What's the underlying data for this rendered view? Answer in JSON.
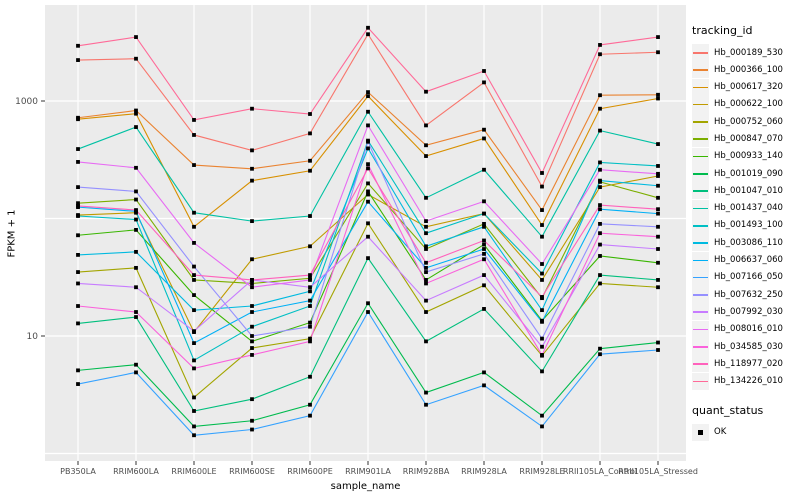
{
  "chart_data": {
    "type": "line",
    "xlabel": "sample_name",
    "ylabel": "FPKM + 1",
    "y_scale": "log10",
    "y_tick_labels": [
      "1000",
      "10"
    ],
    "y_tick_values": [
      1000,
      10
    ],
    "y_gridline_values": [
      1,
      10,
      100,
      1000
    ],
    "ylim": [
      0.9,
      6500
    ],
    "grid": "on",
    "panel_bg": "#EBEBEB",
    "grid_color": "#FFFFFF",
    "point_color": "#000000",
    "tick_text_color": "#4D4D4D",
    "legend_position": "right",
    "categories": [
      "PB350LA",
      "RRIM600LA",
      "RRIM600LE",
      "RRIM600SE",
      "RRIM600PE",
      "RRIM901LA",
      "RRIM928BA",
      "RRIM928LA",
      "RRIM928LE",
      "RRII105LA_Control",
      "RRII105LA_Stressed"
    ],
    "series": [
      {
        "name": "Hb_000189_530",
        "color": "#F8766D",
        "values": [
          2230,
          2290,
          514,
          380,
          530,
          3700,
          620,
          1440,
          187,
          2500,
          2600
        ]
      },
      {
        "name": "Hb_000366_100",
        "color": "#EA8331",
        "values": [
          720,
          830,
          285,
          265,
          310,
          1190,
          420,
          570,
          118,
          1120,
          1130
        ]
      },
      {
        "name": "Hb_000617_320",
        "color": "#D89000",
        "values": [
          700,
          780,
          85,
          210,
          255,
          1100,
          340,
          480,
          88,
          860,
          1050
        ]
      },
      {
        "name": "Hb_000622_100",
        "color": "#C09B00",
        "values": [
          107,
          112,
          10.8,
          45,
          58,
          160,
          85,
          110,
          30,
          185,
          230
        ]
      },
      {
        "name": "Hb_000752_060",
        "color": "#A3A500",
        "values": [
          35,
          38,
          3.0,
          7.9,
          9.5,
          91,
          16,
          27,
          6.8,
          28,
          26
        ]
      },
      {
        "name": "Hb_000847_070",
        "color": "#7CAE00",
        "values": [
          135,
          145,
          30,
          28,
          31,
          199,
          55,
          90,
          21,
          205,
          150
        ]
      },
      {
        "name": "Hb_000933_140",
        "color": "#39B600",
        "values": [
          72,
          80,
          22.3,
          9,
          13,
          170,
          30,
          60,
          13.5,
          48,
          42
        ]
      },
      {
        "name": "Hb_001019_090",
        "color": "#00BB4E",
        "values": [
          5.1,
          5.7,
          1.7,
          1.9,
          2.6,
          19,
          3.3,
          4.9,
          2.1,
          7.8,
          8.8
        ]
      },
      {
        "name": "Hb_001047_010",
        "color": "#00BF7D",
        "values": [
          12.8,
          14.5,
          2.3,
          2.9,
          4.5,
          46,
          9,
          17,
          5.0,
          33,
          30
        ]
      },
      {
        "name": "Hb_001437_040",
        "color": "#00C1A3",
        "values": [
          390,
          600,
          112,
          95,
          105,
          810,
          150,
          260,
          70,
          560,
          430
        ]
      },
      {
        "name": "Hb_001493_100",
        "color": "#00BFC4",
        "values": [
          105,
          98,
          6.2,
          12,
          18,
          460,
          75,
          110,
          34,
          300,
          280
        ]
      },
      {
        "name": "Hb_003086_110",
        "color": "#00BAE0",
        "values": [
          49,
          52,
          16.6,
          18,
          24,
          395,
          58,
          85,
          16.6,
          210,
          190
        ]
      },
      {
        "name": "Hb_006637_060",
        "color": "#00B0F6",
        "values": [
          125,
          115,
          8.7,
          16,
          20,
          139,
          38,
          55,
          13.2,
          120,
          110
        ]
      },
      {
        "name": "Hb_007166_050",
        "color": "#35A2FF",
        "values": [
          3.9,
          4.9,
          1.43,
          1.6,
          2.1,
          16,
          2.6,
          3.8,
          1.7,
          7.0,
          7.6
        ]
      },
      {
        "name": "Hb_007632_250",
        "color": "#9590FF",
        "values": [
          185,
          170,
          39,
          10,
          12,
          450,
          35,
          50,
          9.5,
          90,
          85
        ]
      },
      {
        "name": "Hb_007992_030",
        "color": "#C77CFF",
        "values": [
          28,
          26,
          11,
          30,
          26,
          70,
          20,
          33,
          8.1,
          60,
          55
        ]
      },
      {
        "name": "Hb_008016_010",
        "color": "#E76BF3",
        "values": [
          303,
          270,
          62,
          26,
          30,
          620,
          95,
          140,
          41,
          260,
          240
        ]
      },
      {
        "name": "Hb_034585_030",
        "color": "#FA62DB",
        "values": [
          18,
          16,
          5.3,
          6.9,
          9,
          290,
          28,
          45,
          6.9,
          75,
          70
        ]
      },
      {
        "name": "Hb_118977_020",
        "color": "#FF62BC",
        "values": [
          128,
          118,
          33,
          30,
          33,
          267,
          42,
          65,
          21.5,
          130,
          120
        ]
      },
      {
        "name": "Hb_134226_010",
        "color": "#FF6A98",
        "values": [
          2950,
          3500,
          690,
          860,
          775,
          4200,
          1200,
          1800,
          244,
          3000,
          3500
        ]
      }
    ],
    "legend": {
      "color_title": "tracking_id",
      "shape_title": "quant_status",
      "shape_entries": [
        "OK"
      ]
    }
  }
}
